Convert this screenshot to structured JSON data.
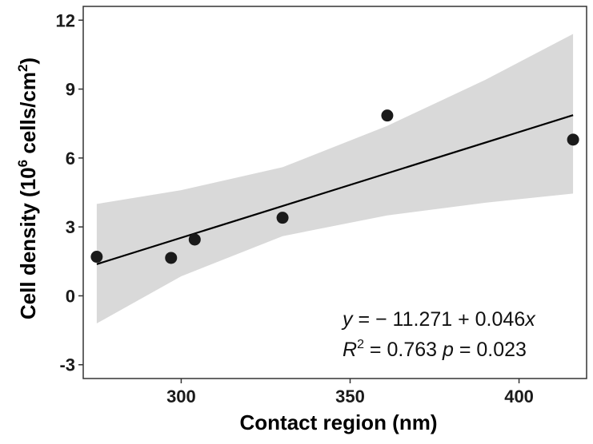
{
  "chart_data": {
    "type": "scatter",
    "title": "",
    "xlabel": "Contact region (nm)",
    "ylabel": {
      "main": "Cell density (10",
      "exp1": "6",
      "mid": " cells/cm",
      "exp2": "2",
      "end": ")"
    },
    "xlim": [
      271,
      420
    ],
    "ylim": [
      -3.6,
      12.6
    ],
    "x_ticks": [
      300,
      350,
      400
    ],
    "y_ticks": [
      -3,
      0,
      3,
      6,
      9,
      12
    ],
    "x_tick_labels": [
      "300",
      "350",
      "400"
    ],
    "y_tick_labels": [
      "-3",
      "0",
      "3",
      "6",
      "9",
      "12"
    ],
    "grid": false,
    "points": [
      {
        "x": 275,
        "y": 1.7
      },
      {
        "x": 297,
        "y": 1.65
      },
      {
        "x": 304,
        "y": 2.45
      },
      {
        "x": 330,
        "y": 3.4
      },
      {
        "x": 361,
        "y": 7.85
      },
      {
        "x": 416,
        "y": 6.8
      }
    ],
    "fit_line": {
      "intercept": -11.271,
      "slope": 0.046,
      "x_range": [
        275,
        416
      ]
    },
    "confidence_band": {
      "x": [
        275,
        300,
        330,
        361,
        390,
        416
      ],
      "lower": [
        -1.2,
        0.85,
        2.6,
        3.5,
        4.05,
        4.45
      ],
      "upper": [
        4.0,
        4.6,
        5.6,
        7.4,
        9.4,
        11.4
      ]
    },
    "annotation": {
      "equation": {
        "y": "y",
        "eq": " = ",
        "minus": "− ",
        "intercept": "11.271",
        "plus": " + ",
        "slope": "0.046",
        "x": "x"
      },
      "stats": {
        "r": "R",
        "r_exp": "2",
        "eq": " = ",
        "r2": "0.763",
        "p": "p",
        "p_eq": " = ",
        "pval": "0.023"
      }
    },
    "colors": {
      "points": "#1a1a1a",
      "line": "#000000",
      "band": "#d9d9d9",
      "axes": "#333333"
    }
  }
}
